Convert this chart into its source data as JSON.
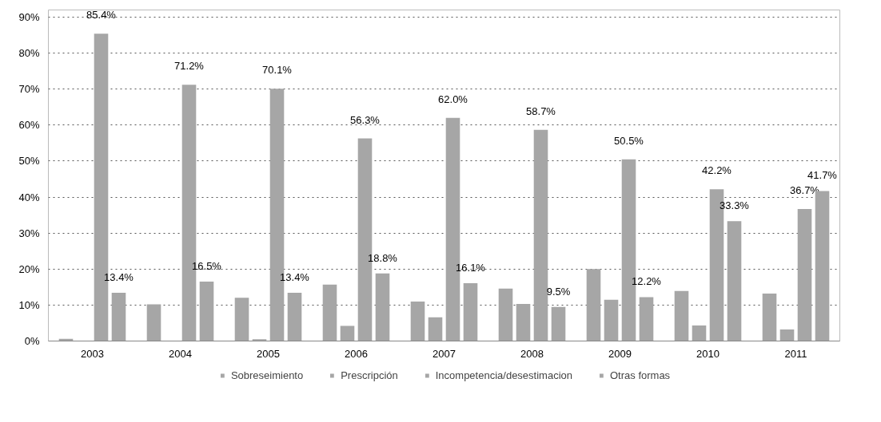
{
  "chart_data": {
    "type": "bar",
    "categories": [
      "2003",
      "2004",
      "2005",
      "2006",
      "2007",
      "2008",
      "2009",
      "2010",
      "2011"
    ],
    "series": [
      {
        "name": "Sobreseimiento",
        "color": "#a6a6a6",
        "values": [
          0.6,
          10.2,
          12.0,
          15.7,
          11.0,
          14.6,
          20.0,
          13.9,
          13.2
        ]
      },
      {
        "name": "Prescripción",
        "color": "#a6a6a6",
        "values": [
          0,
          0,
          0.5,
          4.2,
          6.6,
          10.3,
          11.5,
          4.3,
          3.2
        ]
      },
      {
        "name": "Incompetencia/desestimacion",
        "color": "#a6a6a6",
        "values": [
          85.4,
          71.2,
          70.1,
          56.3,
          62.0,
          58.7,
          50.5,
          42.2,
          36.7
        ],
        "value_labels": [
          "85.4%",
          "71.2%",
          "70.1%",
          "56.3%",
          "62.0%",
          "58.7%",
          "50.5%",
          "42.2%",
          "36.7%"
        ]
      },
      {
        "name": "Otras formas",
        "color": "#a6a6a6",
        "values": [
          13.4,
          16.5,
          13.4,
          18.8,
          16.1,
          9.5,
          12.2,
          33.3,
          41.7
        ],
        "value_labels": [
          "13.4%",
          "16.5%",
          "13.4%",
          "18.8%",
          "16.1%",
          "9.5%",
          "12.2%",
          "33.3%",
          "41.7%"
        ]
      }
    ],
    "ylim": [
      0,
      92
    ],
    "yticks": [
      {
        "value": 0,
        "label": "0%"
      },
      {
        "value": 10,
        "label": "10%"
      },
      {
        "value": 20,
        "label": "20%"
      },
      {
        "value": 30,
        "label": "30%"
      },
      {
        "value": 40,
        "label": "40%"
      },
      {
        "value": 50,
        "label": "50%"
      },
      {
        "value": 60,
        "label": "60%"
      },
      {
        "value": 70,
        "label": "70%"
      },
      {
        "value": 80,
        "label": "80%"
      },
      {
        "value": 90,
        "label": "90%"
      }
    ],
    "grid": "y",
    "legend": "bottom"
  }
}
